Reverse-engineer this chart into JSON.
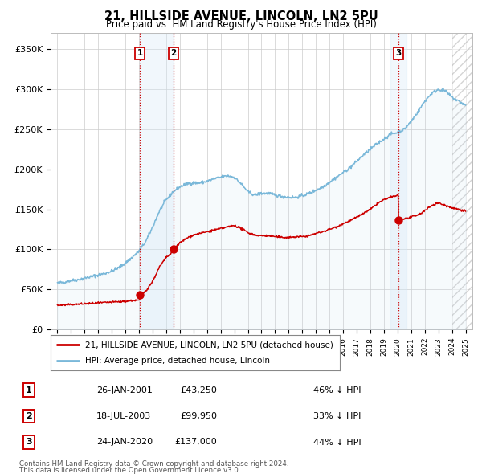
{
  "title": "21, HILLSIDE AVENUE, LINCOLN, LN2 5PU",
  "subtitle": "Price paid vs. HM Land Registry's House Price Index (HPI)",
  "ylabel_ticks": [
    "£0",
    "£50K",
    "£100K",
    "£150K",
    "£200K",
    "£250K",
    "£300K",
    "£350K"
  ],
  "ytick_values": [
    0,
    50000,
    100000,
    150000,
    200000,
    250000,
    300000,
    350000
  ],
  "ylim": [
    0,
    370000
  ],
  "xlim_start": 1994.5,
  "xlim_end": 2025.5,
  "hatch_start": 2024.0,
  "transactions": [
    {
      "label": "1",
      "date": "26-JAN-2001",
      "price": 43250,
      "pct": "46%",
      "x": 2001.07
    },
    {
      "label": "2",
      "date": "18-JUL-2003",
      "price": 99950,
      "pct": "33%",
      "x": 2003.54
    },
    {
      "label": "3",
      "date": "24-JAN-2020",
      "price": 137000,
      "pct": "44%",
      "x": 2020.07
    }
  ],
  "legend_line1": "21, HILLSIDE AVENUE, LINCOLN, LN2 5PU (detached house)",
  "legend_line2": "HPI: Average price, detached house, Lincoln",
  "footer1": "Contains HM Land Registry data © Crown copyright and database right 2024.",
  "footer2": "This data is licensed under the Open Government Licence v3.0.",
  "table_rows": [
    [
      "1",
      "26-JAN-2001",
      "£43,250",
      "46% ↓ HPI"
    ],
    [
      "2",
      "18-JUL-2003",
      "£99,950",
      "33% ↓ HPI"
    ],
    [
      "3",
      "24-JAN-2020",
      "£137,000",
      "44% ↓ HPI"
    ]
  ],
  "hpi_color": "#7ab8d9",
  "hpi_fill_color": "#c8e0f0",
  "price_color": "#cc0000",
  "transaction_marker_color": "#cc0000",
  "vline_color": "#cc0000",
  "shade_color": "#d8eaf8",
  "background_color": "#ffffff",
  "grid_color": "#cccccc",
  "hpi_keypoints": [
    [
      1995.0,
      58000
    ],
    [
      1995.5,
      59000
    ],
    [
      1996.0,
      61000
    ],
    [
      1996.5,
      62000
    ],
    [
      1997.0,
      64000
    ],
    [
      1997.5,
      66000
    ],
    [
      1998.0,
      68000
    ],
    [
      1998.5,
      70000
    ],
    [
      1999.0,
      73000
    ],
    [
      1999.5,
      77000
    ],
    [
      2000.0,
      83000
    ],
    [
      2000.5,
      90000
    ],
    [
      2001.0,
      98000
    ],
    [
      2001.5,
      110000
    ],
    [
      2002.0,
      128000
    ],
    [
      2002.5,
      148000
    ],
    [
      2003.0,
      162000
    ],
    [
      2003.5,
      172000
    ],
    [
      2004.0,
      178000
    ],
    [
      2004.5,
      182000
    ],
    [
      2005.0,
      183000
    ],
    [
      2005.5,
      183000
    ],
    [
      2006.0,
      185000
    ],
    [
      2006.5,
      188000
    ],
    [
      2007.0,
      190000
    ],
    [
      2007.5,
      192000
    ],
    [
      2008.0,
      190000
    ],
    [
      2008.5,
      182000
    ],
    [
      2009.0,
      172000
    ],
    [
      2009.5,
      168000
    ],
    [
      2010.0,
      170000
    ],
    [
      2010.5,
      170000
    ],
    [
      2011.0,
      168000
    ],
    [
      2011.5,
      166000
    ],
    [
      2012.0,
      165000
    ],
    [
      2012.5,
      165000
    ],
    [
      2013.0,
      167000
    ],
    [
      2013.5,
      170000
    ],
    [
      2014.0,
      174000
    ],
    [
      2014.5,
      178000
    ],
    [
      2015.0,
      184000
    ],
    [
      2015.5,
      190000
    ],
    [
      2016.0,
      196000
    ],
    [
      2016.5,
      202000
    ],
    [
      2017.0,
      210000
    ],
    [
      2017.5,
      218000
    ],
    [
      2018.0,
      225000
    ],
    [
      2018.5,
      232000
    ],
    [
      2019.0,
      238000
    ],
    [
      2019.5,
      244000
    ],
    [
      2020.0,
      246000
    ],
    [
      2020.5,
      250000
    ],
    [
      2021.0,
      260000
    ],
    [
      2021.5,
      272000
    ],
    [
      2022.0,
      285000
    ],
    [
      2022.5,
      295000
    ],
    [
      2023.0,
      300000
    ],
    [
      2023.5,
      298000
    ],
    [
      2024.0,
      290000
    ],
    [
      2024.5,
      285000
    ],
    [
      2025.0,
      280000
    ]
  ],
  "price_keypoints": [
    [
      1995.0,
      30000
    ],
    [
      1995.5,
      30500
    ],
    [
      1996.0,
      31000
    ],
    [
      1996.5,
      31500
    ],
    [
      1997.0,
      32000
    ],
    [
      1997.5,
      32500
    ],
    [
      1998.0,
      33000
    ],
    [
      1998.5,
      33500
    ],
    [
      1999.0,
      34000
    ],
    [
      1999.5,
      34500
    ],
    [
      2000.0,
      35000
    ],
    [
      2000.5,
      36000
    ],
    [
      2001.06,
      36500
    ],
    [
      2001.07,
      43250
    ],
    [
      2001.5,
      48000
    ],
    [
      2002.0,
      60000
    ],
    [
      2002.5,
      78000
    ],
    [
      2003.0,
      90000
    ],
    [
      2003.53,
      97000
    ],
    [
      2003.54,
      99950
    ],
    [
      2004.0,
      108000
    ],
    [
      2004.5,
      114000
    ],
    [
      2005.0,
      118000
    ],
    [
      2005.5,
      120000
    ],
    [
      2006.0,
      122000
    ],
    [
      2006.5,
      124000
    ],
    [
      2007.0,
      126000
    ],
    [
      2007.5,
      128000
    ],
    [
      2008.0,
      130000
    ],
    [
      2008.5,
      126000
    ],
    [
      2009.0,
      121000
    ],
    [
      2009.5,
      118000
    ],
    [
      2010.0,
      117000
    ],
    [
      2010.5,
      117000
    ],
    [
      2011.0,
      116000
    ],
    [
      2011.5,
      115000
    ],
    [
      2012.0,
      115000
    ],
    [
      2012.5,
      115500
    ],
    [
      2013.0,
      116000
    ],
    [
      2013.5,
      117000
    ],
    [
      2014.0,
      120000
    ],
    [
      2014.5,
      122000
    ],
    [
      2015.0,
      125000
    ],
    [
      2015.5,
      128000
    ],
    [
      2016.0,
      132000
    ],
    [
      2016.5,
      136000
    ],
    [
      2017.0,
      140000
    ],
    [
      2017.5,
      145000
    ],
    [
      2018.0,
      150000
    ],
    [
      2018.5,
      157000
    ],
    [
      2019.0,
      162000
    ],
    [
      2019.5,
      165000
    ],
    [
      2020.06,
      168000
    ],
    [
      2020.07,
      137000
    ],
    [
      2020.5,
      138000
    ],
    [
      2021.0,
      140000
    ],
    [
      2021.5,
      143000
    ],
    [
      2022.0,
      148000
    ],
    [
      2022.5,
      155000
    ],
    [
      2023.0,
      158000
    ],
    [
      2023.5,
      155000
    ],
    [
      2024.0,
      152000
    ],
    [
      2024.5,
      150000
    ],
    [
      2025.0,
      148000
    ]
  ]
}
